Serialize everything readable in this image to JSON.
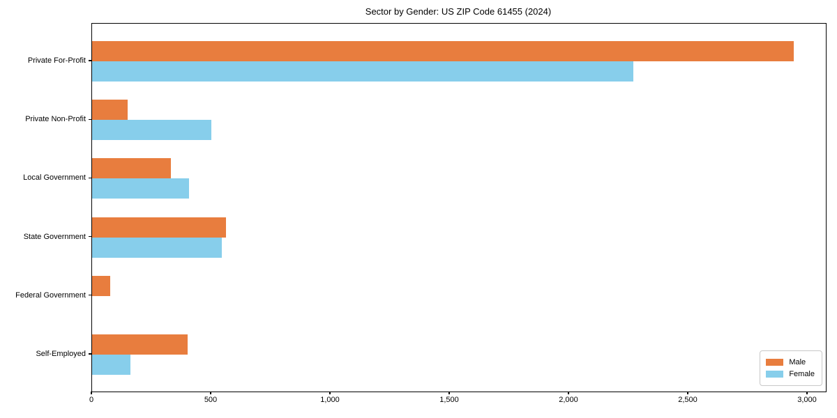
{
  "chart_data": {
    "type": "bar",
    "orientation": "horizontal",
    "title": "Sector by Gender: US ZIP Code 61455 (2024)",
    "categories": [
      "Private For-Profit",
      "Private Non-Profit",
      "Local Government",
      "State Government",
      "Federal Government",
      "Self-Employed"
    ],
    "series": [
      {
        "name": "Male",
        "color": "#E87D3E",
        "values": [
          2940,
          150,
          330,
          560,
          75,
          400
        ]
      },
      {
        "name": "Female",
        "color": "#87CEEB",
        "values": [
          2270,
          500,
          405,
          545,
          0,
          160
        ]
      }
    ],
    "xlabel": "",
    "ylabel": "",
    "xlim": [
      0,
      3076
    ],
    "xticks": [
      0,
      500,
      1000,
      1500,
      2000,
      2500,
      3000
    ],
    "xtick_labels": [
      "0",
      "500",
      "1,000",
      "1,500",
      "2,000",
      "2,500",
      "3,000"
    ],
    "grid": false,
    "legend_position": "lower right"
  }
}
